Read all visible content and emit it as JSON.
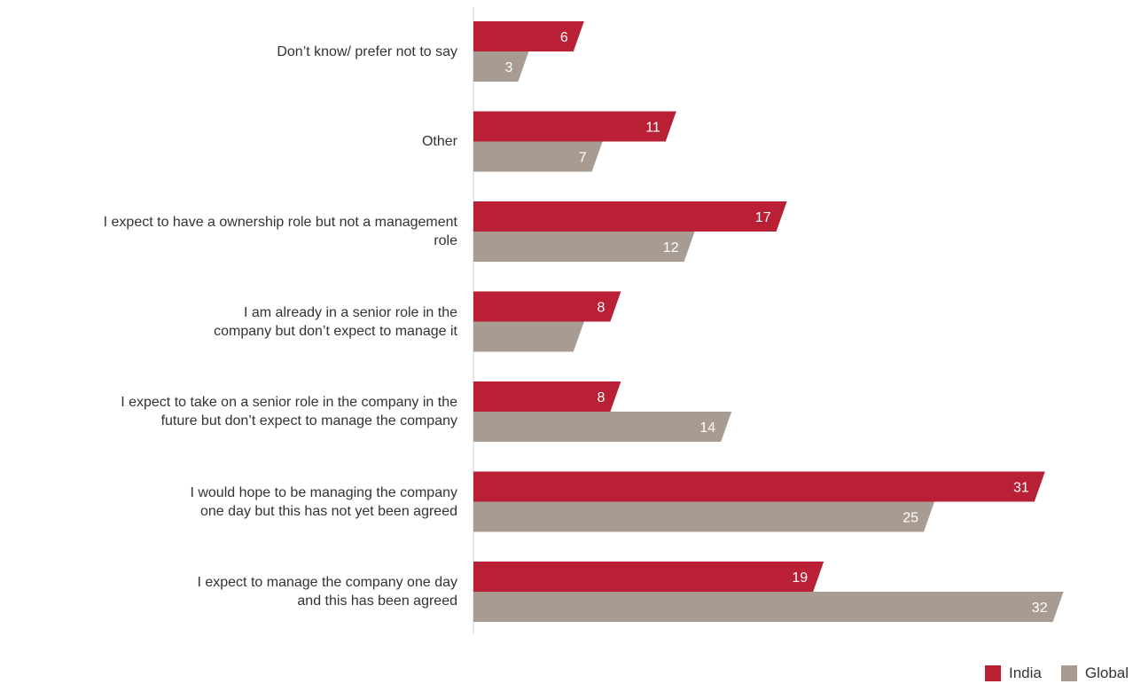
{
  "chart_data": {
    "type": "bar",
    "orientation": "horizontal",
    "categories": [
      "Don’t know/ prefer not to say",
      "Other",
      "I expect to have a ownership role but not a management\nrole",
      "I am already in a senior role in the\ncompany but don’t expect to manage it",
      "I expect to take on a senior role in the company in the\nfuture but don’t expect to manage the company",
      "I would hope to be managing the company\none day but this has not yet been agreed",
      "I expect to manage the company one day\nand this has been agreed"
    ],
    "series": [
      {
        "name": "India",
        "color": "#b92035",
        "values": [
          6,
          11,
          17,
          8,
          8,
          31,
          19
        ],
        "labels": [
          "6",
          "11",
          "17",
          "8",
          "8",
          "31",
          "19"
        ]
      },
      {
        "name": "Global",
        "color": "#a89c92",
        "values": [
          3,
          7,
          12,
          6,
          14,
          25,
          32
        ],
        "labels": [
          "3",
          "7",
          "12",
          "",
          "14",
          "25",
          "32"
        ]
      }
    ],
    "xlim": [
      0,
      32
    ],
    "grid": false,
    "legend_position": "bottom-right"
  }
}
